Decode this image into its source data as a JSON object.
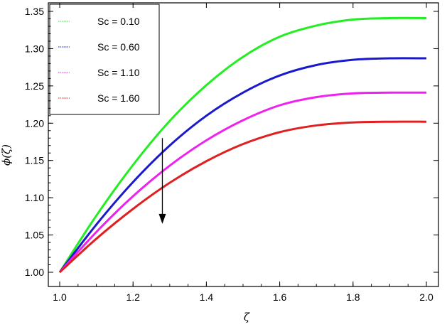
{
  "chart_data": {
    "type": "line",
    "title": "",
    "xlabel": "ζ",
    "ylabel": "ϕ(ζ)",
    "xlim": [
      1.0,
      2.0
    ],
    "ylim": [
      0.98,
      1.355
    ],
    "xticks": [
      "1.0",
      "1.2",
      "1.4",
      "1.6",
      "1.8",
      "2.0"
    ],
    "xtick_values": [
      1.0,
      1.2,
      1.4,
      1.6,
      1.8,
      2.0
    ],
    "yticks": [
      "1.00",
      "1.05",
      "1.10",
      "1.15",
      "1.20",
      "1.25",
      "1.30",
      "1.35"
    ],
    "ytick_values": [
      1.0,
      1.05,
      1.1,
      1.15,
      1.2,
      1.25,
      1.3,
      1.35
    ],
    "grid": false,
    "legend_position": "top-left",
    "annotation": "downward arrow indicating decrease with increasing Sc",
    "x": [
      1.0,
      1.1,
      1.2,
      1.3,
      1.4,
      1.5,
      1.6,
      1.7,
      1.8,
      1.9,
      2.0
    ],
    "series": [
      {
        "name": "Sc = 0.10",
        "color": "#22ee22",
        "values": [
          1.0,
          1.076,
          1.144,
          1.203,
          1.251,
          1.289,
          1.316,
          1.331,
          1.339,
          1.341,
          1.341
        ]
      },
      {
        "name": "Sc = 0.60",
        "color": "#1a1acc",
        "values": [
          1.0,
          1.064,
          1.121,
          1.17,
          1.21,
          1.241,
          1.264,
          1.278,
          1.285,
          1.287,
          1.287
        ]
      },
      {
        "name": "Sc = 1.10",
        "color": "#ee22ee",
        "values": [
          1.0,
          1.054,
          1.102,
          1.143,
          1.177,
          1.204,
          1.224,
          1.235,
          1.24,
          1.241,
          1.241
        ]
      },
      {
        "name": "Sc = 1.60",
        "color": "#e02020",
        "values": [
          1.0,
          1.045,
          1.085,
          1.12,
          1.149,
          1.172,
          1.188,
          1.197,
          1.201,
          1.202,
          1.202
        ]
      }
    ],
    "arrow": {
      "x": 1.28,
      "y_start": 1.18,
      "y_end": 1.065
    }
  }
}
